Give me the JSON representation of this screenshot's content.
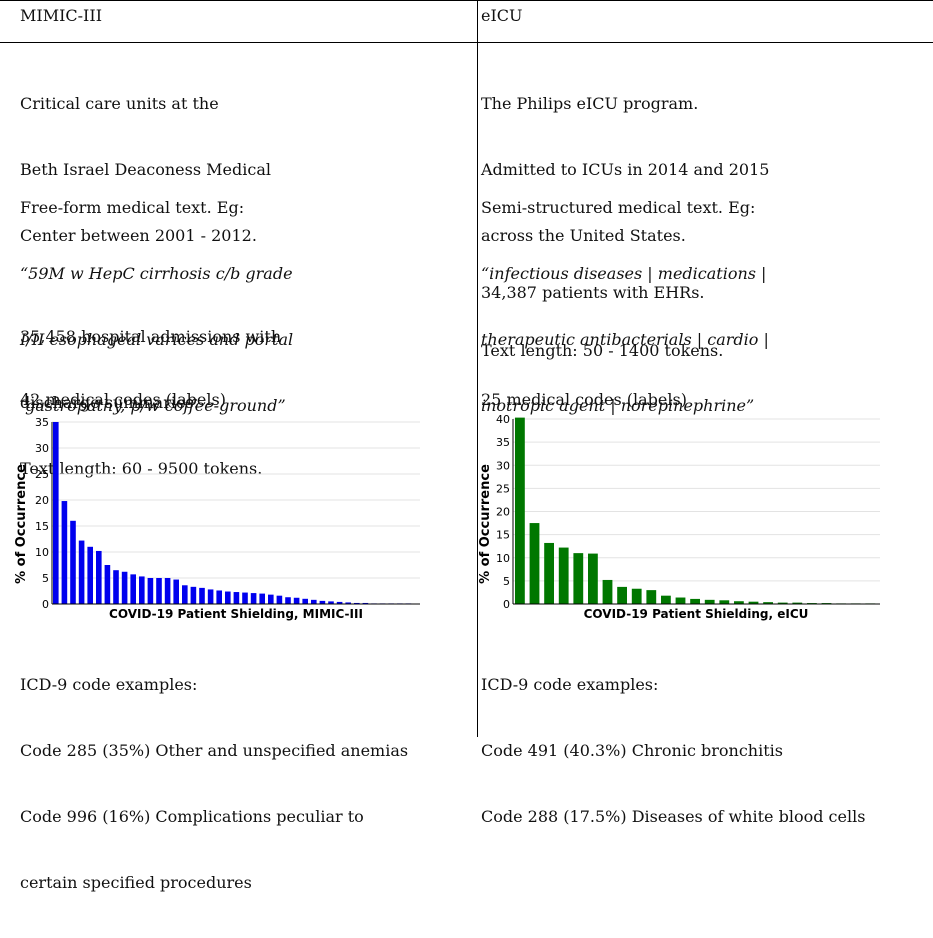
{
  "table": {
    "headers": [
      "MIMIC-III",
      "eICU"
    ],
    "columns": [
      {
        "source": [
          "Critical care units at the",
          "Beth Israel Deaconess Medical",
          "Center between 2001 - 2012."
        ],
        "text_intro": "Free-form medical text. Eg:",
        "text_example": [
          "“59M w HepC cirrhosis c/b grade",
          "I/II esophageal varices and portal",
          " gastropathy, p/w coffee-ground”"
        ],
        "size": [
          "35,458 hospital admissions with",
          "discharge summaries."
        ],
        "length": "Text length: 60 - 9500 tokens.",
        "codes": "42 medical codes (labels)",
        "icd_title": "ICD-9 code examples:",
        "icd_examples": [
          "Code 285 (35%) Other and unspecified anemias",
          "Code 996 (16%) Complications peculiar to",
          "certain specified procedures"
        ]
      },
      {
        "source": [
          "The Philips eICU program.",
          "Admitted to ICUs in 2014 and 2015",
          "across the United States."
        ],
        "text_intro": "Semi-structured medical text. Eg:",
        "text_example": [
          "“infectious diseases | medications |",
          "therapeutic antibacterials | cardio |",
          "inotropic agent | norepinephrine”"
        ],
        "size": [
          "34,387 patients with EHRs."
        ],
        "length": "Text length: 50 - 1400 tokens.",
        "codes": "25 medical codes (labels)",
        "icd_title": "ICD-9 code examples:",
        "icd_examples": [
          "Code 491 (40.3%) Chronic bronchitis",
          "Code 288 (17.5%) Diseases of white blood cells"
        ]
      }
    ]
  },
  "chart_data": [
    {
      "type": "bar",
      "title": "COVID-19 Patient Shielding, MIMIC-III",
      "xlabel": "",
      "ylabel": "% of Occurrence",
      "ylim": [
        0,
        35
      ],
      "yticks": [
        0,
        5,
        10,
        15,
        20,
        25,
        30,
        35
      ],
      "color": "#0000ee",
      "grid": true,
      "values": [
        35,
        19.8,
        16.0,
        12.2,
        11.0,
        10.2,
        7.5,
        6.5,
        6.2,
        5.7,
        5.3,
        5.0,
        5.0,
        5.0,
        4.7,
        3.6,
        3.3,
        3.1,
        2.8,
        2.6,
        2.4,
        2.3,
        2.2,
        2.1,
        2.0,
        1.8,
        1.6,
        1.3,
        1.2,
        1.0,
        0.8,
        0.6,
        0.5,
        0.4,
        0.3,
        0.2,
        0.2,
        0.1,
        0.1,
        0.1,
        0.05,
        0.05
      ]
    },
    {
      "type": "bar",
      "title": "COVID-19 Patient Shielding, eICU",
      "xlabel": "",
      "ylabel": "% of Occurrence",
      "ylim": [
        0,
        40
      ],
      "yticks": [
        0,
        5,
        10,
        15,
        20,
        25,
        30,
        35,
        40
      ],
      "color": "#007700",
      "grid": true,
      "values": [
        40.3,
        17.5,
        13.2,
        12.2,
        11.0,
        10.9,
        5.2,
        3.7,
        3.3,
        3.0,
        1.8,
        1.4,
        1.1,
        0.9,
        0.8,
        0.6,
        0.5,
        0.4,
        0.3,
        0.3,
        0.2,
        0.2,
        0.1,
        0.1,
        0.1
      ]
    }
  ]
}
